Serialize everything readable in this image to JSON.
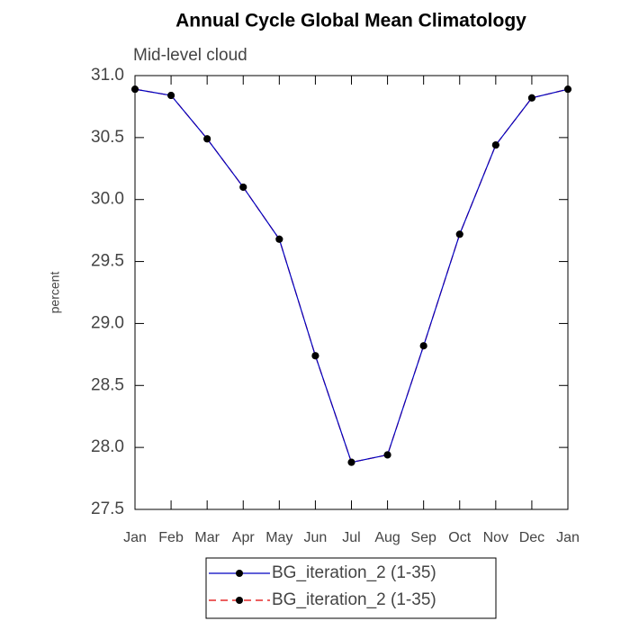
{
  "chart_data": {
    "type": "line",
    "title": "Annual Cycle Global Mean Climatology",
    "subtitle": "Mid-level cloud",
    "ylabel": "percent",
    "categories": [
      "Jan",
      "Feb",
      "Mar",
      "Apr",
      "May",
      "Jun",
      "Jul",
      "Aug",
      "Sep",
      "Oct",
      "Nov",
      "Dec",
      "Jan"
    ],
    "series": [
      {
        "name": "BG_iteration_2 (1-35)",
        "color": "#e00000",
        "dashed": true,
        "values": [
          30.89,
          30.84,
          30.49,
          30.1,
          29.68,
          28.74,
          27.88,
          27.94,
          28.82,
          29.72,
          30.44,
          30.82,
          30.89
        ]
      },
      {
        "name": "BG_iteration_2 (1-35)",
        "color": "#0000c0",
        "dashed": false,
        "values": [
          30.89,
          30.84,
          30.49,
          30.1,
          29.68,
          28.74,
          27.88,
          27.94,
          28.82,
          29.72,
          30.44,
          30.82,
          30.89
        ]
      }
    ],
    "ylim": [
      27.5,
      31.0
    ],
    "yticks": [
      27.5,
      {
        "value": 28,
        "label": "28.0"
      },
      28.5,
      {
        "value": 29,
        "label": "29.0"
      },
      29.5,
      {
        "value": 30,
        "label": "30.0"
      },
      30.5,
      {
        "value": 31,
        "label": "31.0"
      }
    ],
    "legend": "bottom"
  }
}
